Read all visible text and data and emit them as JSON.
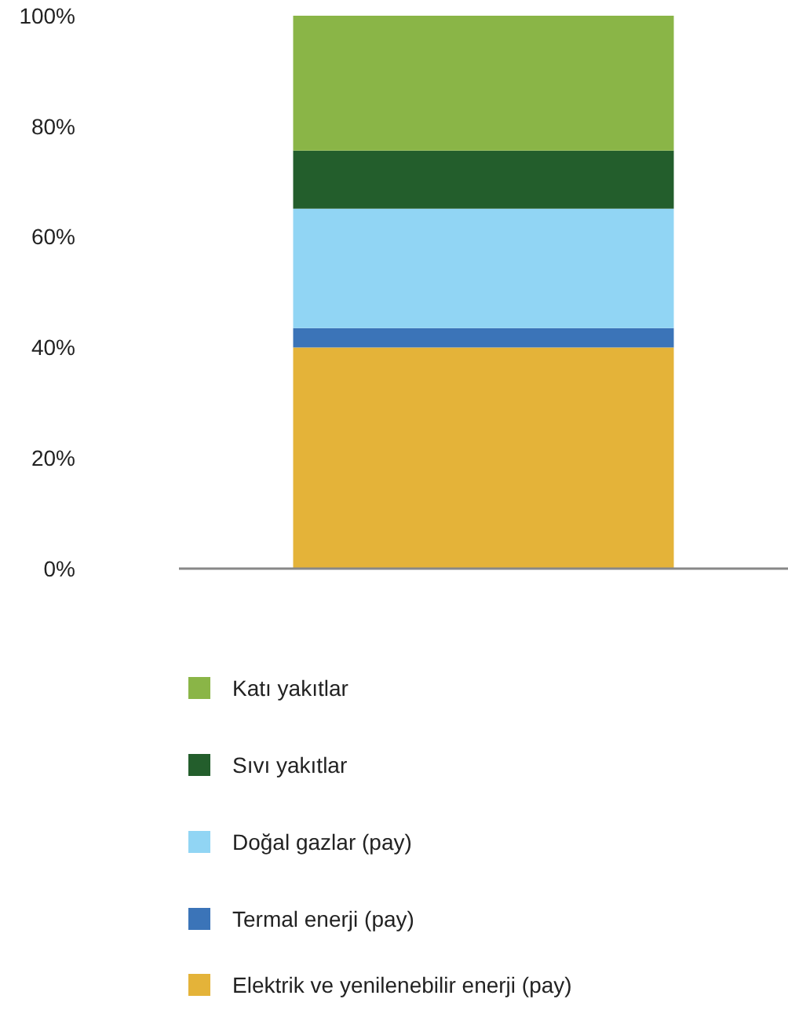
{
  "chart_data": {
    "type": "bar",
    "stacked": true,
    "categories": [
      null
    ],
    "series": [
      {
        "name": "Elektrik ve yenilenebilir enerji (pay)",
        "color": "#e4b339",
        "values": [
          40
        ]
      },
      {
        "name": "Termal enerji (pay)",
        "color": "#3b74b8",
        "values": [
          3.5
        ]
      },
      {
        "name": "Doğal gazlar (pay)",
        "color": "#91d5f4",
        "values": [
          21.6
        ]
      },
      {
        "name": "Sıvı yakıtlar",
        "color": "#235e2c",
        "values": [
          10.5
        ]
      },
      {
        "name": "Katı yakıtlar",
        "color": "#8ab547",
        "values": [
          24.4
        ]
      }
    ],
    "ylim": [
      0,
      100
    ],
    "yticks": [
      {
        "value": 0,
        "label": "0%"
      },
      {
        "value": 20,
        "label": "20%"
      },
      {
        "value": 40,
        "label": "40%"
      },
      {
        "value": 60,
        "label": "60%"
      },
      {
        "value": 80,
        "label": "80%"
      },
      {
        "value": 100,
        "label": "100%"
      }
    ],
    "legend": "bottom"
  }
}
